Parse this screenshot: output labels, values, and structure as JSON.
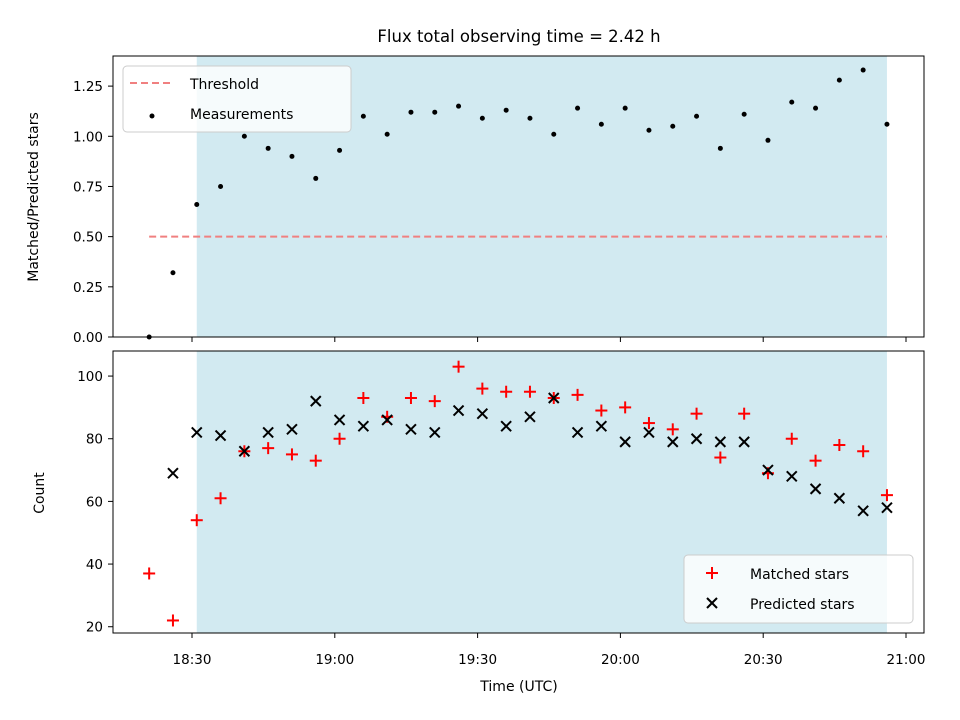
{
  "title": "Flux total observing time = 2.42 h",
  "colors": {
    "shade": "#add8e6",
    "threshold": "#f08080",
    "measurement": "#000000",
    "matched": "#ff0000",
    "predicted": "#000000"
  },
  "chart_data": [
    {
      "type": "scatter",
      "ylabel": "Matched/Predicted stars",
      "ylim": [
        0,
        1.4
      ],
      "yticks": [
        "0.00",
        "0.25",
        "0.50",
        "0.75",
        "1.00",
        "1.25"
      ],
      "legend": {
        "placement": "top-left",
        "entries": [
          "Threshold",
          "Measurements"
        ]
      },
      "shaded_region": {
        "x_start": "18:31",
        "x_end": "20:56"
      },
      "threshold": {
        "name": "Threshold",
        "y": 0.5,
        "x_start": "18:21",
        "x_end": "20:56",
        "style": "dashed"
      },
      "series": [
        {
          "name": "Measurements",
          "marker": "dot",
          "x": [
            "18:21",
            "18:26",
            "18:31",
            "18:36",
            "18:41",
            "18:46",
            "18:51",
            "18:56",
            "19:01",
            "19:06",
            "19:11",
            "19:16",
            "19:21",
            "19:26",
            "19:31",
            "19:36",
            "19:41",
            "19:46",
            "19:51",
            "19:56",
            "20:01",
            "20:06",
            "20:11",
            "20:16",
            "20:21",
            "20:26",
            "20:31",
            "20:36",
            "20:41",
            "20:46",
            "20:51",
            "20:56"
          ],
          "y": [
            0.0,
            0.32,
            0.66,
            0.75,
            1.0,
            0.94,
            0.9,
            0.79,
            0.93,
            1.1,
            1.01,
            1.12,
            1.12,
            1.15,
            1.09,
            1.13,
            1.09,
            1.01,
            1.14,
            1.06,
            1.14,
            1.03,
            1.05,
            1.1,
            0.94,
            1.11,
            0.98,
            1.17,
            1.14,
            1.28,
            1.33,
            1.06
          ]
        }
      ]
    },
    {
      "type": "scatter",
      "xlabel": "Time (UTC)",
      "ylabel": "Count",
      "ylim": [
        18,
        108
      ],
      "xlim": [
        "18:10",
        "21:05"
      ],
      "xticks": [
        "18:30",
        "19:00",
        "19:30",
        "20:00",
        "20:30",
        "21:00"
      ],
      "yticks": [
        "20",
        "40",
        "60",
        "80",
        "100"
      ],
      "legend": {
        "placement": "bottom-right",
        "entries": [
          "Matched stars",
          "Predicted stars"
        ]
      },
      "shaded_region": {
        "x_start": "18:31",
        "x_end": "20:56"
      },
      "series": [
        {
          "name": "Matched stars",
          "marker": "plus",
          "x": [
            "18:21",
            "18:26",
            "18:31",
            "18:36",
            "18:41",
            "18:46",
            "18:51",
            "18:56",
            "19:01",
            "19:06",
            "19:11",
            "19:16",
            "19:21",
            "19:26",
            "19:31",
            "19:36",
            "19:41",
            "19:46",
            "19:51",
            "19:56",
            "20:01",
            "20:06",
            "20:11",
            "20:16",
            "20:21",
            "20:26",
            "20:31",
            "20:36",
            "20:41",
            "20:46",
            "20:51",
            "20:56"
          ],
          "y": [
            37,
            22,
            54,
            61,
            76,
            77,
            75,
            73,
            80,
            93,
            87,
            93,
            92,
            103,
            96,
            95,
            95,
            93,
            94,
            89,
            90,
            85,
            83,
            88,
            74,
            88,
            69,
            80,
            73,
            78,
            76,
            62
          ]
        },
        {
          "name": "Predicted stars",
          "marker": "x",
          "x": [
            "18:26",
            "18:31",
            "18:36",
            "18:41",
            "18:46",
            "18:51",
            "18:56",
            "19:01",
            "19:06",
            "19:11",
            "19:16",
            "19:21",
            "19:26",
            "19:31",
            "19:36",
            "19:41",
            "19:46",
            "19:51",
            "19:56",
            "20:01",
            "20:06",
            "20:11",
            "20:16",
            "20:21",
            "20:26",
            "20:31",
            "20:36",
            "20:41",
            "20:46",
            "20:51",
            "20:56"
          ],
          "y": [
            69,
            82,
            81,
            76,
            82,
            83,
            92,
            86,
            84,
            86,
            83,
            82,
            89,
            88,
            84,
            87,
            93,
            82,
            84,
            79,
            82,
            79,
            80,
            79,
            79,
            70,
            68,
            64,
            61,
            57,
            58
          ]
        }
      ]
    }
  ]
}
